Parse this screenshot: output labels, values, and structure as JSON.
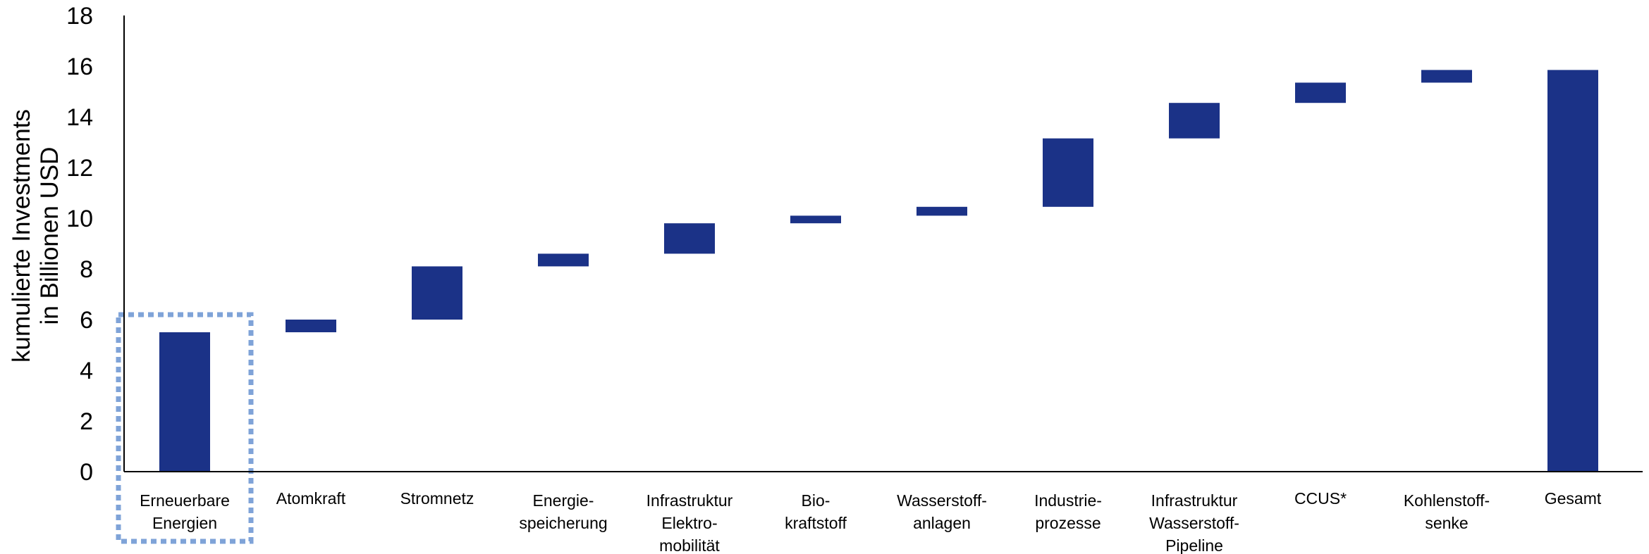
{
  "chart_data": {
    "type": "bar",
    "subtype": "waterfall",
    "ylabel_lines": [
      "kumulierte Investments",
      "in Billionen USD"
    ],
    "ylim": [
      0,
      18
    ],
    "yticks": [
      0,
      2,
      4,
      6,
      8,
      10,
      12,
      14,
      16,
      18
    ],
    "grid": false,
    "bar_color": "#1B3287",
    "highlight_color": "#7FA3D8",
    "highlighted_category": "Erneuerbare Energien",
    "categories": [
      {
        "label": [
          "Erneuerbare",
          "Energien"
        ],
        "start": 0,
        "end": 5.5
      },
      {
        "label": [
          "Atomkraft"
        ],
        "start": 5.5,
        "end": 6.0
      },
      {
        "label": [
          "Stromnetz"
        ],
        "start": 6.0,
        "end": 8.1
      },
      {
        "label": [
          "Energie-",
          "speicherung"
        ],
        "start": 8.1,
        "end": 8.6
      },
      {
        "label": [
          "Infrastruktur",
          "Elektro-",
          "mobilität"
        ],
        "start": 8.6,
        "end": 9.8
      },
      {
        "label": [
          "Bio-",
          "kraftstoff"
        ],
        "start": 9.8,
        "end": 10.1
      },
      {
        "label": [
          "Wasserstoff-",
          "anlagen"
        ],
        "start": 10.1,
        "end": 10.45
      },
      {
        "label": [
          "Industrie-",
          "prozesse"
        ],
        "start": 10.45,
        "end": 13.15
      },
      {
        "label": [
          "Infrastruktur",
          "Wasserstoff-",
          "Pipeline"
        ],
        "start": 13.15,
        "end": 14.55
      },
      {
        "label": [
          "CCUS*"
        ],
        "start": 14.55,
        "end": 15.35
      },
      {
        "label": [
          "Kohlenstoff-",
          "senke"
        ],
        "start": 15.35,
        "end": 15.85
      },
      {
        "label": [
          "Gesamt"
        ],
        "start": 0,
        "end": 15.85
      }
    ]
  }
}
